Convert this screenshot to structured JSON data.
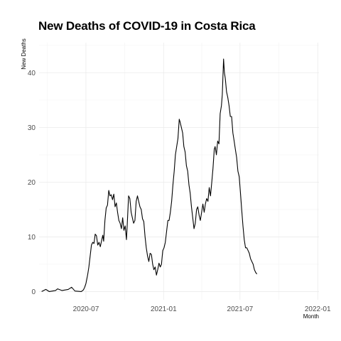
{
  "chart_data": {
    "type": "line",
    "title": "New Deaths of COVID-19 in Costa Rica",
    "xlabel": "Month",
    "ylabel": "New Deaths",
    "ylim": [
      -1.5,
      45.5
    ],
    "xlim": [
      "2020-03-12",
      "2022-01-04"
    ],
    "grid": true,
    "x_ticks": [
      "2020-07",
      "2021-01",
      "2021-07",
      "2022-01"
    ],
    "y_ticks": [
      0,
      10,
      20,
      30,
      40
    ],
    "series": [
      {
        "points": [
          [
            "2020-03-18",
            0
          ],
          [
            "2020-03-28",
            0.4
          ],
          [
            "2020-04-05",
            0
          ],
          [
            "2020-04-20",
            0.2
          ],
          [
            "2020-04-25",
            0.5
          ],
          [
            "2020-05-05",
            0.2
          ],
          [
            "2020-05-20",
            0.4
          ],
          [
            "2020-05-28",
            0.8
          ],
          [
            "2020-06-05",
            0.1
          ],
          [
            "2020-06-20",
            0
          ],
          [
            "2020-06-25",
            0.3
          ],
          [
            "2020-06-28",
            0.8
          ],
          [
            "2020-07-01",
            1.5
          ],
          [
            "2020-07-05",
            3
          ],
          [
            "2020-07-08",
            4.5
          ],
          [
            "2020-07-11",
            6.5
          ],
          [
            "2020-07-14",
            8.5
          ],
          [
            "2020-07-17",
            9
          ],
          [
            "2020-07-20",
            8.8
          ],
          [
            "2020-07-23",
            10.5
          ],
          [
            "2020-07-26",
            10.2
          ],
          [
            "2020-07-29",
            8.5
          ],
          [
            "2020-08-01",
            9
          ],
          [
            "2020-08-04",
            8.2
          ],
          [
            "2020-08-07",
            9.3
          ],
          [
            "2020-08-10",
            10.3
          ],
          [
            "2020-08-12",
            9.2
          ],
          [
            "2020-08-15",
            13
          ],
          [
            "2020-08-18",
            15.3
          ],
          [
            "2020-08-21",
            15.8
          ],
          [
            "2020-08-24",
            18.5
          ],
          [
            "2020-08-27",
            17.5
          ],
          [
            "2020-08-30",
            17.7
          ],
          [
            "2020-09-02",
            16.8
          ],
          [
            "2020-09-05",
            17.8
          ],
          [
            "2020-09-08",
            15.5
          ],
          [
            "2020-09-11",
            16.2
          ],
          [
            "2020-09-14",
            14.5
          ],
          [
            "2020-09-17",
            13
          ],
          [
            "2020-09-20",
            12.5
          ],
          [
            "2020-09-23",
            11.5
          ],
          [
            "2020-09-26",
            13.5
          ],
          [
            "2020-09-29",
            11.2
          ],
          [
            "2020-10-02",
            12
          ],
          [
            "2020-10-05",
            9.5
          ],
          [
            "2020-10-07",
            12.5
          ],
          [
            "2020-10-10",
            17.5
          ],
          [
            "2020-10-13",
            17
          ],
          [
            "2020-10-16",
            14.5
          ],
          [
            "2020-10-19",
            13.5
          ],
          [
            "2020-10-22",
            12.5
          ],
          [
            "2020-10-25",
            13
          ],
          [
            "2020-10-28",
            16.5
          ],
          [
            "2020-10-31",
            17.5
          ],
          [
            "2020-11-03",
            16.5
          ],
          [
            "2020-11-06",
            15.5
          ],
          [
            "2020-11-09",
            15
          ],
          [
            "2020-11-12",
            13.3
          ],
          [
            "2020-11-15",
            12.8
          ],
          [
            "2020-11-18",
            10
          ],
          [
            "2020-11-21",
            8
          ],
          [
            "2020-11-24",
            6.5
          ],
          [
            "2020-11-27",
            5.5
          ],
          [
            "2020-11-30",
            7
          ],
          [
            "2020-12-03",
            6.8
          ],
          [
            "2020-12-06",
            5
          ],
          [
            "2020-12-09",
            4
          ],
          [
            "2020-12-12",
            4.5
          ],
          [
            "2020-12-15",
            3
          ],
          [
            "2020-12-18",
            4
          ],
          [
            "2020-12-21",
            5.2
          ],
          [
            "2020-12-24",
            4.5
          ],
          [
            "2020-12-27",
            5
          ],
          [
            "2020-12-30",
            7.5
          ],
          [
            "2021-01-02",
            8
          ],
          [
            "2021-01-05",
            9
          ],
          [
            "2021-01-08",
            11
          ],
          [
            "2021-01-11",
            13
          ],
          [
            "2021-01-14",
            13
          ],
          [
            "2021-01-17",
            14.5
          ],
          [
            "2021-01-20",
            16.5
          ],
          [
            "2021-01-23",
            19.5
          ],
          [
            "2021-01-26",
            22
          ],
          [
            "2021-01-29",
            25
          ],
          [
            "2021-02-01",
            26.5
          ],
          [
            "2021-02-04",
            28
          ],
          [
            "2021-02-07",
            31.5
          ],
          [
            "2021-02-09",
            31
          ],
          [
            "2021-02-12",
            30
          ],
          [
            "2021-02-15",
            29
          ],
          [
            "2021-02-18",
            26.5
          ],
          [
            "2021-02-21",
            25.5
          ],
          [
            "2021-02-24",
            23
          ],
          [
            "2021-02-27",
            22
          ],
          [
            "2021-03-02",
            19.5
          ],
          [
            "2021-03-05",
            18
          ],
          [
            "2021-03-08",
            15.5
          ],
          [
            "2021-03-11",
            13.5
          ],
          [
            "2021-03-14",
            11.5
          ],
          [
            "2021-03-17",
            12.5
          ],
          [
            "2021-03-20",
            15
          ],
          [
            "2021-03-23",
            15.5
          ],
          [
            "2021-03-26",
            14
          ],
          [
            "2021-03-29",
            13
          ],
          [
            "2021-04-01",
            14.5
          ],
          [
            "2021-04-04",
            16
          ],
          [
            "2021-04-07",
            14.5
          ],
          [
            "2021-04-10",
            16
          ],
          [
            "2021-04-13",
            17
          ],
          [
            "2021-04-16",
            16.5
          ],
          [
            "2021-04-19",
            19
          ],
          [
            "2021-04-22",
            17.5
          ],
          [
            "2021-04-25",
            20
          ],
          [
            "2021-04-28",
            22.5
          ],
          [
            "2021-05-01",
            26
          ],
          [
            "2021-05-03",
            26.5
          ],
          [
            "2021-05-06",
            25
          ],
          [
            "2021-05-09",
            27.5
          ],
          [
            "2021-05-12",
            27
          ],
          [
            "2021-05-15",
            32.5
          ],
          [
            "2021-05-18",
            34
          ],
          [
            "2021-05-20",
            36
          ],
          [
            "2021-05-23",
            42.5
          ],
          [
            "2021-05-25",
            40
          ],
          [
            "2021-05-27",
            39
          ],
          [
            "2021-05-30",
            36.5
          ],
          [
            "2021-06-02",
            35.5
          ],
          [
            "2021-06-05",
            34
          ],
          [
            "2021-06-08",
            32
          ],
          [
            "2021-06-11",
            32
          ],
          [
            "2021-06-14",
            29
          ],
          [
            "2021-06-17",
            27.5
          ],
          [
            "2021-06-20",
            26
          ],
          [
            "2021-06-23",
            24.5
          ],
          [
            "2021-06-26",
            22
          ],
          [
            "2021-06-29",
            21
          ],
          [
            "2021-07-02",
            18
          ],
          [
            "2021-07-05",
            15
          ],
          [
            "2021-07-08",
            12
          ],
          [
            "2021-07-11",
            9.5
          ],
          [
            "2021-07-14",
            8
          ],
          [
            "2021-07-17",
            8
          ],
          [
            "2021-07-20",
            7.5
          ],
          [
            "2021-07-23",
            7
          ],
          [
            "2021-07-26",
            6
          ],
          [
            "2021-07-29",
            5.5
          ],
          [
            "2021-08-01",
            5
          ],
          [
            "2021-08-04",
            4
          ],
          [
            "2021-08-07",
            3.5
          ],
          [
            "2021-08-10",
            3.2
          ]
        ]
      }
    ]
  }
}
